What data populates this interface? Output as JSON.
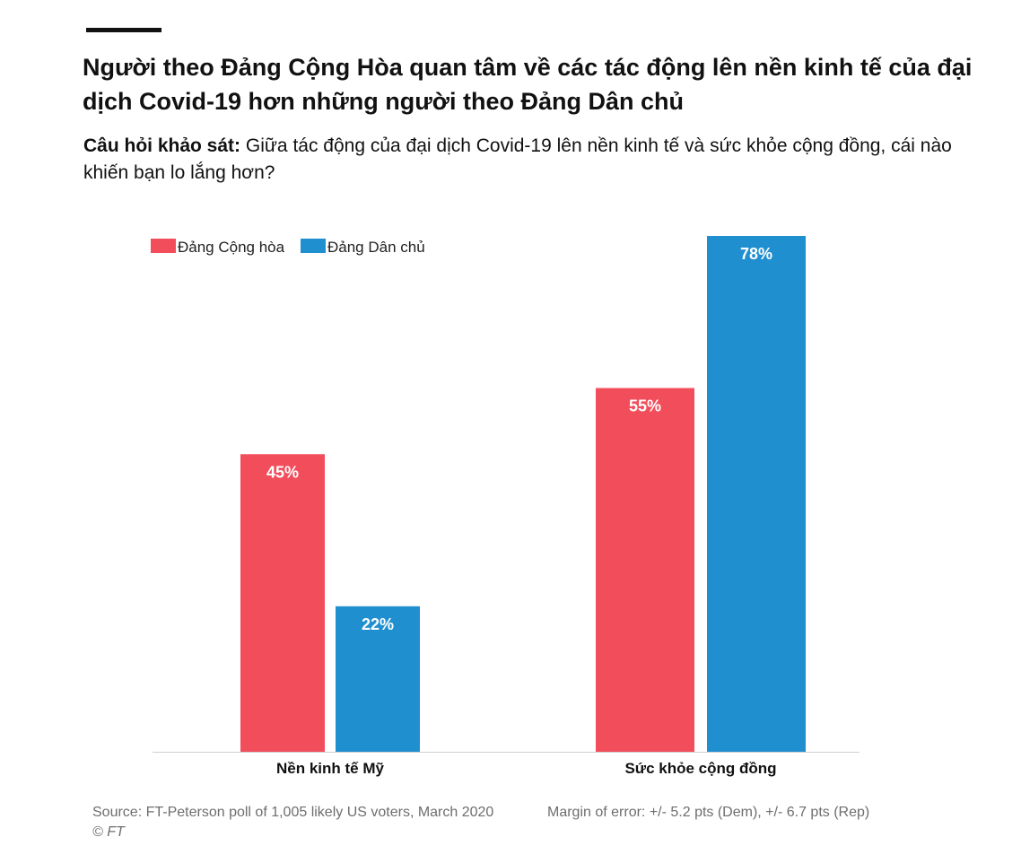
{
  "header": {
    "title": "Người theo Đảng Cộng Hòa quan tâm về các tác động lên nền kinh tế của đại dịch Covid-19 hơn những người theo Đảng Dân chủ",
    "question_label": "Câu hỏi khảo sát:",
    "question_text": " Giữa tác động của đại dịch Covid-19 lên nền kinh tế và sức khỏe cộng đồng, cái nào khiến bạn lo lắng hơn?"
  },
  "chart_data": {
    "type": "bar",
    "categories": [
      "Nền kinh tế Mỹ",
      "Sức khỏe cộng đồng"
    ],
    "series": [
      {
        "name": "Đảng Cộng hòa",
        "values": [
          45,
          55
        ],
        "labels": [
          "45%",
          "55%"
        ],
        "color": "#f24d5b"
      },
      {
        "name": "Đảng Dân chủ",
        "values": [
          22,
          78
        ],
        "labels": [
          "22%",
          "78%"
        ],
        "color": "#1f8fd0"
      }
    ],
    "ylim": [
      0,
      78
    ],
    "grid": false,
    "legend": "top-left"
  },
  "footer": {
    "source": "Source: FT-Peterson poll of 1,005 likely US voters, March 2020",
    "margin": "Margin of error: +/- 5.2 pts (Dem), +/- 6.7 pts (Rep)",
    "copyright": "© FT"
  }
}
